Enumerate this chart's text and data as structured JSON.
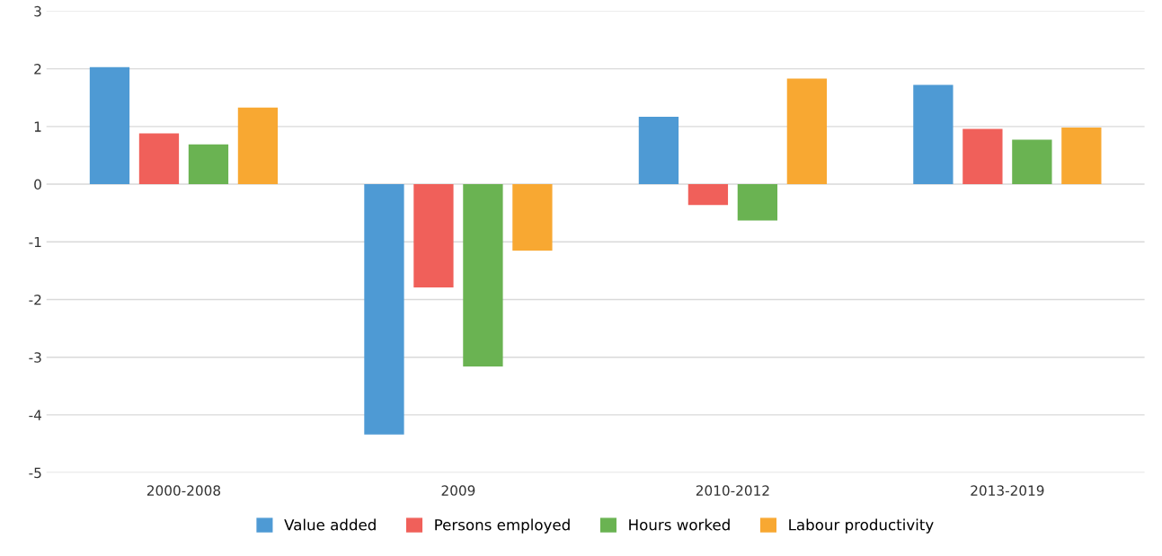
{
  "chart_data": {
    "type": "bar",
    "categories": [
      "2000-2008",
      "2009",
      "2010-2012",
      "2013-2019"
    ],
    "series": [
      {
        "name": "Value added",
        "color": "#4e9ad4",
        "values": [
          2.03,
          -4.34,
          1.17,
          1.72
        ]
      },
      {
        "name": "Persons employed",
        "color": "#f0605a",
        "values": [
          0.88,
          -1.79,
          -0.36,
          0.96
        ]
      },
      {
        "name": "Hours worked",
        "color": "#6ab352",
        "values": [
          0.69,
          -3.16,
          -0.63,
          0.77
        ]
      },
      {
        "name": "Labour productivity",
        "color": "#f8a832",
        "values": [
          1.33,
          -1.15,
          1.83,
          0.98
        ]
      }
    ],
    "ylim": [
      -5,
      3
    ],
    "yticks": [
      -5,
      -4,
      -3,
      -2,
      -1,
      0,
      1,
      2,
      3
    ],
    "grid": "y",
    "legend": "bottom"
  }
}
